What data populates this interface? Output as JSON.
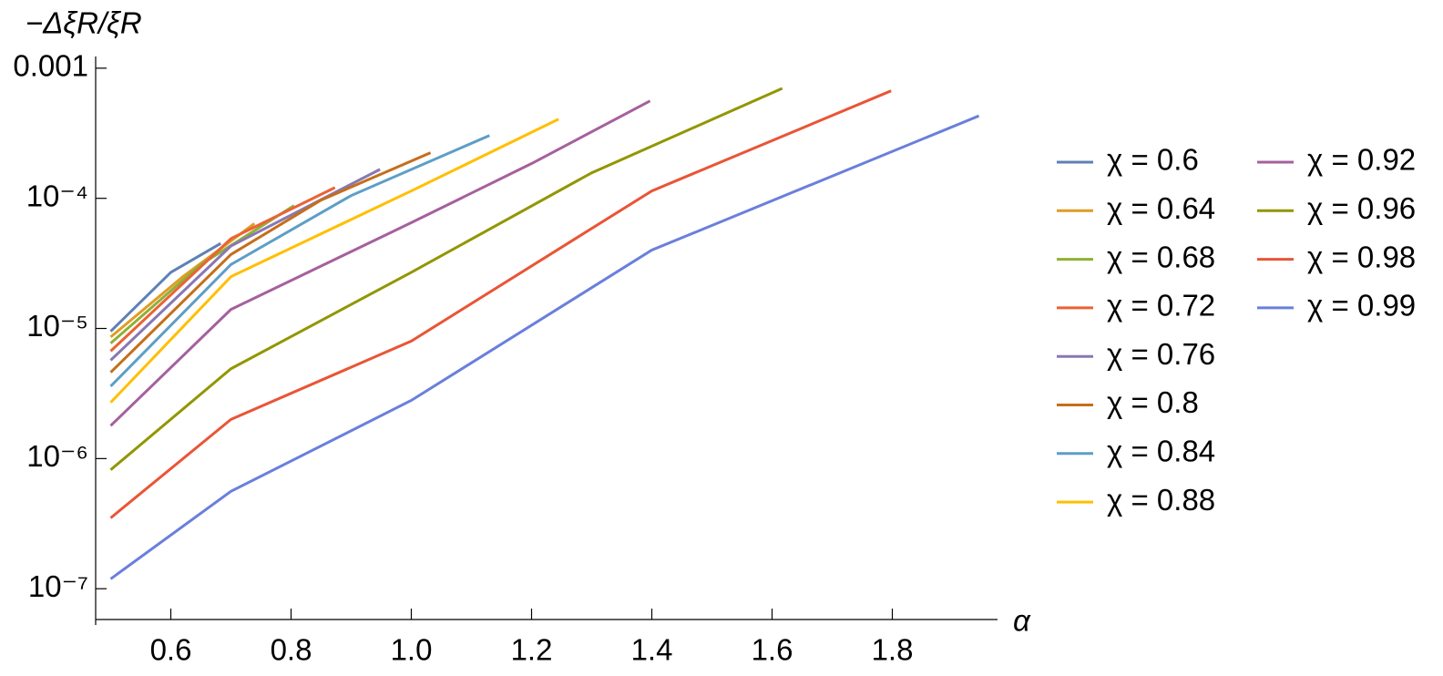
{
  "chart_data": {
    "type": "line",
    "y_label": "−ΔξR/ξR",
    "x_label": "α",
    "xlim": [
      0.475,
      1.975
    ],
    "ylim": [
      5.8e-08,
      0.00123
    ],
    "log_y": true,
    "xticks": [
      0.6,
      0.8,
      {
        "value": 1,
        "label": "1.0"
      },
      1.2,
      1.4,
      1.6,
      1.8
    ],
    "yticks": [
      {
        "value": 1e-07,
        "label": "10⁻⁷"
      },
      {
        "value": 1e-06,
        "label": "10⁻⁶"
      },
      {
        "value": 1e-05,
        "label": "10⁻⁵"
      },
      {
        "value": 0.0001,
        "label": "10⁻⁴"
      },
      0.001
    ],
    "series": [
      {
        "name": "χ = 0.6",
        "color": "#5e81b5",
        "x": [
          0.5,
          0.6,
          0.683
        ],
        "values": [
          9.5e-06,
          2.7e-05,
          4.5e-05
        ]
      },
      {
        "name": "χ = 0.64",
        "color": "#e19c24",
        "x": [
          0.5,
          0.62,
          0.739
        ],
        "values": [
          8.6e-06,
          2.5e-05,
          6.4e-05
        ]
      },
      {
        "name": "χ = 0.68",
        "color": "#8fb032",
        "x": [
          0.5,
          0.65,
          0.805
        ],
        "values": [
          7.7e-06,
          3.1e-05,
          8.8e-05
        ]
      },
      {
        "name": "χ = 0.72",
        "color": "#eb6235",
        "x": [
          0.5,
          0.7,
          0.873
        ],
        "values": [
          6.7e-06,
          4.9e-05,
          0.000121
        ]
      },
      {
        "name": "χ = 0.76",
        "color": "#8778b3",
        "x": [
          0.5,
          0.7,
          0.948
        ],
        "values": [
          5.7e-06,
          4.3e-05,
          0.000167
        ]
      },
      {
        "name": "χ = 0.8",
        "color": "#c56e1a",
        "x": [
          0.5,
          0.7,
          0.85,
          1.032
        ],
        "values": [
          4.6e-06,
          3.7e-05,
          9.7e-05,
          0.000224
        ]
      },
      {
        "name": "χ = 0.84",
        "color": "#5d9ec7",
        "x": [
          0.5,
          0.7,
          0.9,
          1.13
        ],
        "values": [
          3.6e-06,
          3.1e-05,
          0.000105,
          0.000304
        ]
      },
      {
        "name": "χ = 0.88",
        "color": "#ffbf00",
        "x": [
          0.5,
          0.7,
          1.0,
          1.245
        ],
        "values": [
          2.7e-06,
          2.5e-05,
          0.000114,
          0.000406
        ]
      },
      {
        "name": "χ = 0.92",
        "color": "#a5609d",
        "x": [
          0.5,
          0.7,
          1.0,
          1.2,
          1.397
        ],
        "values": [
          1.79e-06,
          1.4e-05,
          6.5e-05,
          0.000185,
          0.00056
        ]
      },
      {
        "name": "χ = 0.96",
        "color": "#929600",
        "x": [
          0.5,
          0.7,
          1.0,
          1.3,
          1.617
        ],
        "values": [
          8.2e-07,
          4.9e-06,
          2.7e-05,
          0.000157,
          0.0007
        ]
      },
      {
        "name": "χ = 0.98",
        "color": "#e95536",
        "x": [
          0.5,
          0.7,
          1.0,
          1.4,
          1.798
        ],
        "values": [
          3.5e-07,
          2e-06,
          8e-06,
          0.000114,
          0.00067
        ]
      },
      {
        "name": "χ = 0.99",
        "color": "#6a7fdc",
        "x": [
          0.5,
          0.7,
          1.0,
          1.4,
          1.944
        ],
        "values": [
          1.19e-07,
          5.6e-07,
          2.8e-06,
          4e-05,
          0.00043
        ]
      }
    ]
  }
}
